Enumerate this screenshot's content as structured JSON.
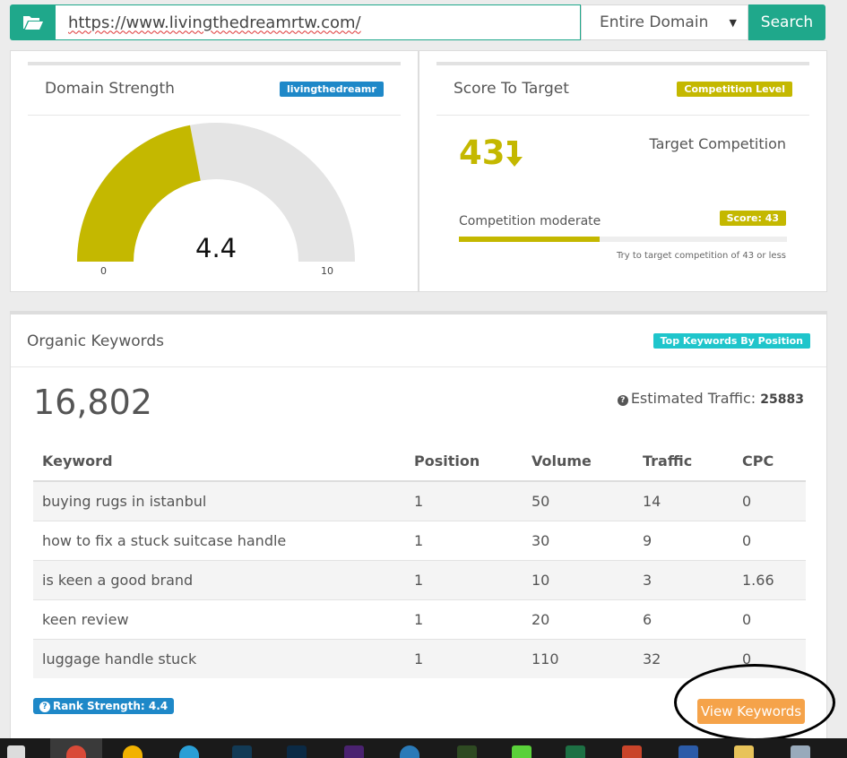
{
  "search": {
    "url": "https://www.livingthedreamrtw.com/",
    "scope": "Entire Domain",
    "button": "Search"
  },
  "domain_strength": {
    "title": "Domain Strength",
    "badge": "livingthedreamr",
    "value": "4.4",
    "gauge_min": "0",
    "gauge_max": "10",
    "gauge_fraction": 0.44,
    "fill_color": "#c4b800"
  },
  "score_to_target": {
    "title": "Score To Target",
    "badge": "Competition Level",
    "score": "43",
    "target_label": "Target Competition",
    "competition_label": "Competition moderate",
    "score_badge": "Score: 43",
    "progress_fraction": 0.43,
    "hint": "Try to target competition of 43 or less"
  },
  "organic": {
    "title": "Organic Keywords",
    "badge": "Top Keywords By Position",
    "total": "16,802",
    "traffic_label": "Estimated Traffic:",
    "traffic_value": "25883",
    "columns": [
      "Keyword",
      "Position",
      "Volume",
      "Traffic",
      "CPC"
    ],
    "rows": [
      [
        "buying rugs in istanbul",
        "1",
        "50",
        "14",
        "0"
      ],
      [
        "how to fix a stuck suitcase handle",
        "1",
        "30",
        "9",
        "0"
      ],
      [
        "is keen a good brand",
        "1",
        "10",
        "3",
        "1.66"
      ],
      [
        "keen review",
        "1",
        "20",
        "6",
        "0"
      ],
      [
        "luggage handle stuck",
        "1",
        "110",
        "32",
        "0"
      ]
    ],
    "rank_badge": "Rank Strength: 4.4",
    "view_button": "View Keywords"
  },
  "icons": {
    "folder": "folder-open-icon",
    "arrow": "arrow-down-icon",
    "question": "question-circle-icon"
  },
  "colors": {
    "accent_green": "#1fa88b",
    "olive": "#c4b800",
    "blue": "#1e88c8",
    "cyan": "#1fc5cb",
    "orange": "#f5a34a"
  }
}
